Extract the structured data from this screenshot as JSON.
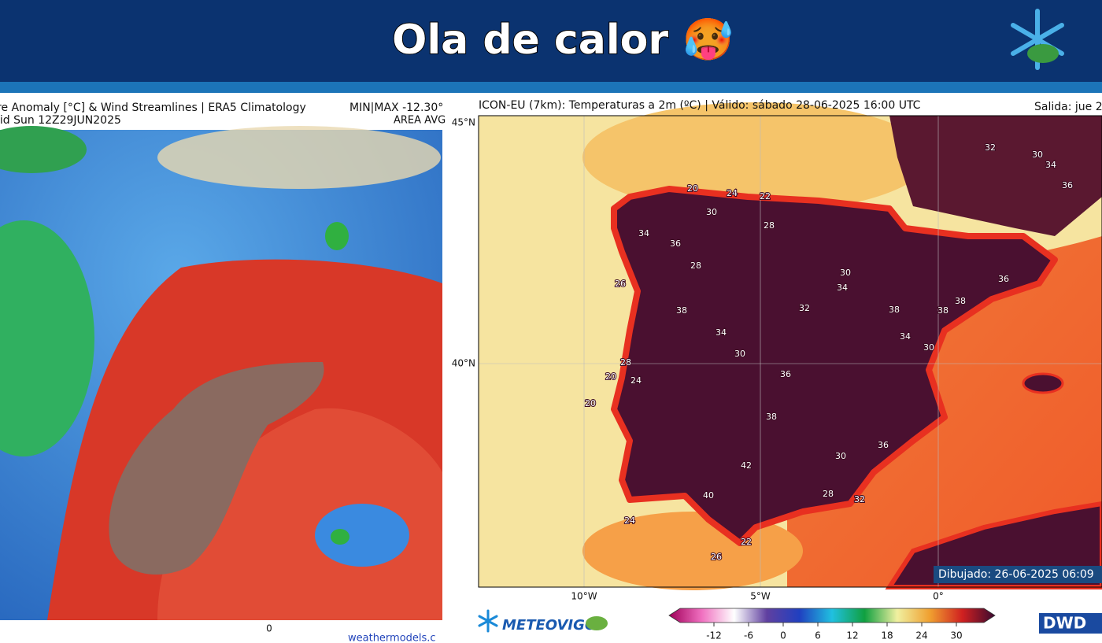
{
  "header": {
    "title": "Ola de calor 🥵"
  },
  "left_map": {
    "title_line1": "re Anomaly [°C] & Wind Streamlines | ERA5 Climatology",
    "title_line2": "lid Sun 12Z29JUN2025",
    "minmax": "MIN|MAX -12.30°",
    "area": "AREA AVG",
    "x_label": "0",
    "credit": "weathermodels.c"
  },
  "right_map": {
    "title": "ICON-EU (7km): Temperaturas a 2m (ºC) | Válido: sábado 28-06-2025 16:00 UTC",
    "run": "Salida: jue 2",
    "lat_labels": [
      "45°N",
      "40°N"
    ],
    "lon_labels": [
      "10°W",
      "5°W",
      "0°"
    ],
    "drawn": "Dibujado: 26-06-2025 06:09",
    "contour_labels": [
      20,
      24,
      22,
      30,
      34,
      36,
      38,
      28,
      32,
      30,
      34,
      36,
      38,
      38,
      36,
      34,
      30,
      28,
      26,
      24,
      20,
      20,
      28,
      30,
      32,
      34,
      36,
      38,
      40,
      42,
      24,
      26,
      22,
      28,
      30,
      32,
      36,
      38,
      34,
      30
    ],
    "colorbar_ticks": [
      -12,
      -6,
      0,
      6,
      12,
      18,
      24,
      30
    ],
    "logo_left": "METEOVIGO",
    "logo_right": "DWD"
  }
}
